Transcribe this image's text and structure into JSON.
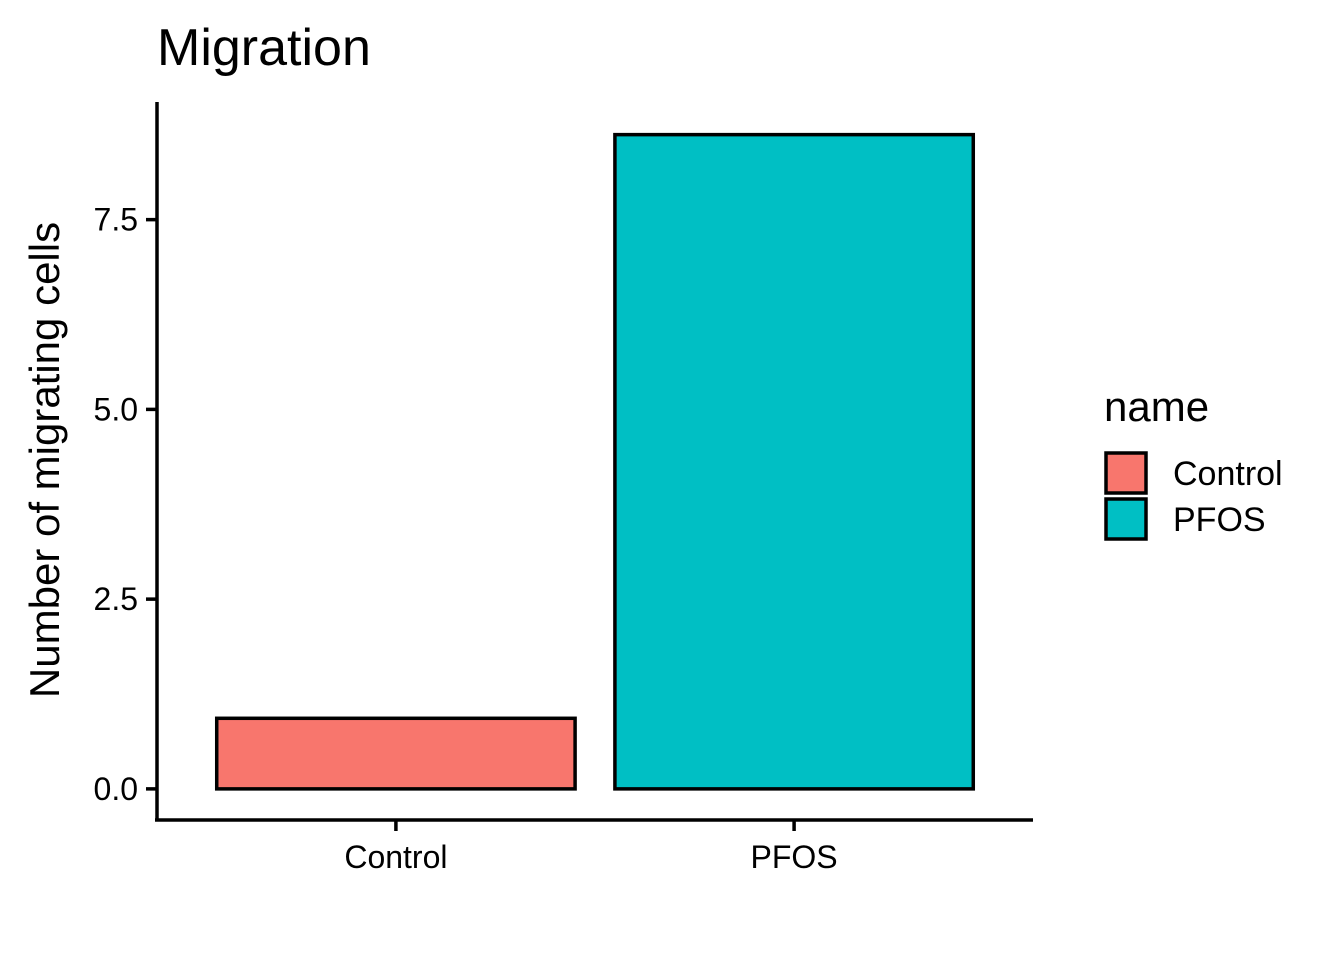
{
  "chart_data": {
    "type": "bar",
    "title": "Migration",
    "xlabel": "",
    "ylabel": "Number of migrating cells",
    "categories": [
      "Control",
      "PFOS"
    ],
    "values": [
      0.93,
      8.62
    ],
    "colors": [
      "#F8766D",
      "#00BFC4"
    ],
    "ylim": [
      -0.41,
      9.05
    ],
    "yticks": [
      0.0,
      2.5,
      5.0,
      7.5
    ],
    "ytick_labels": [
      "0.0",
      "2.5",
      "5.0",
      "7.5"
    ],
    "grid": false,
    "legend": {
      "title": "name",
      "position": "right",
      "entries": [
        {
          "label": "Control",
          "color": "#F8766D"
        },
        {
          "label": "PFOS",
          "color": "#00BFC4"
        }
      ]
    }
  }
}
